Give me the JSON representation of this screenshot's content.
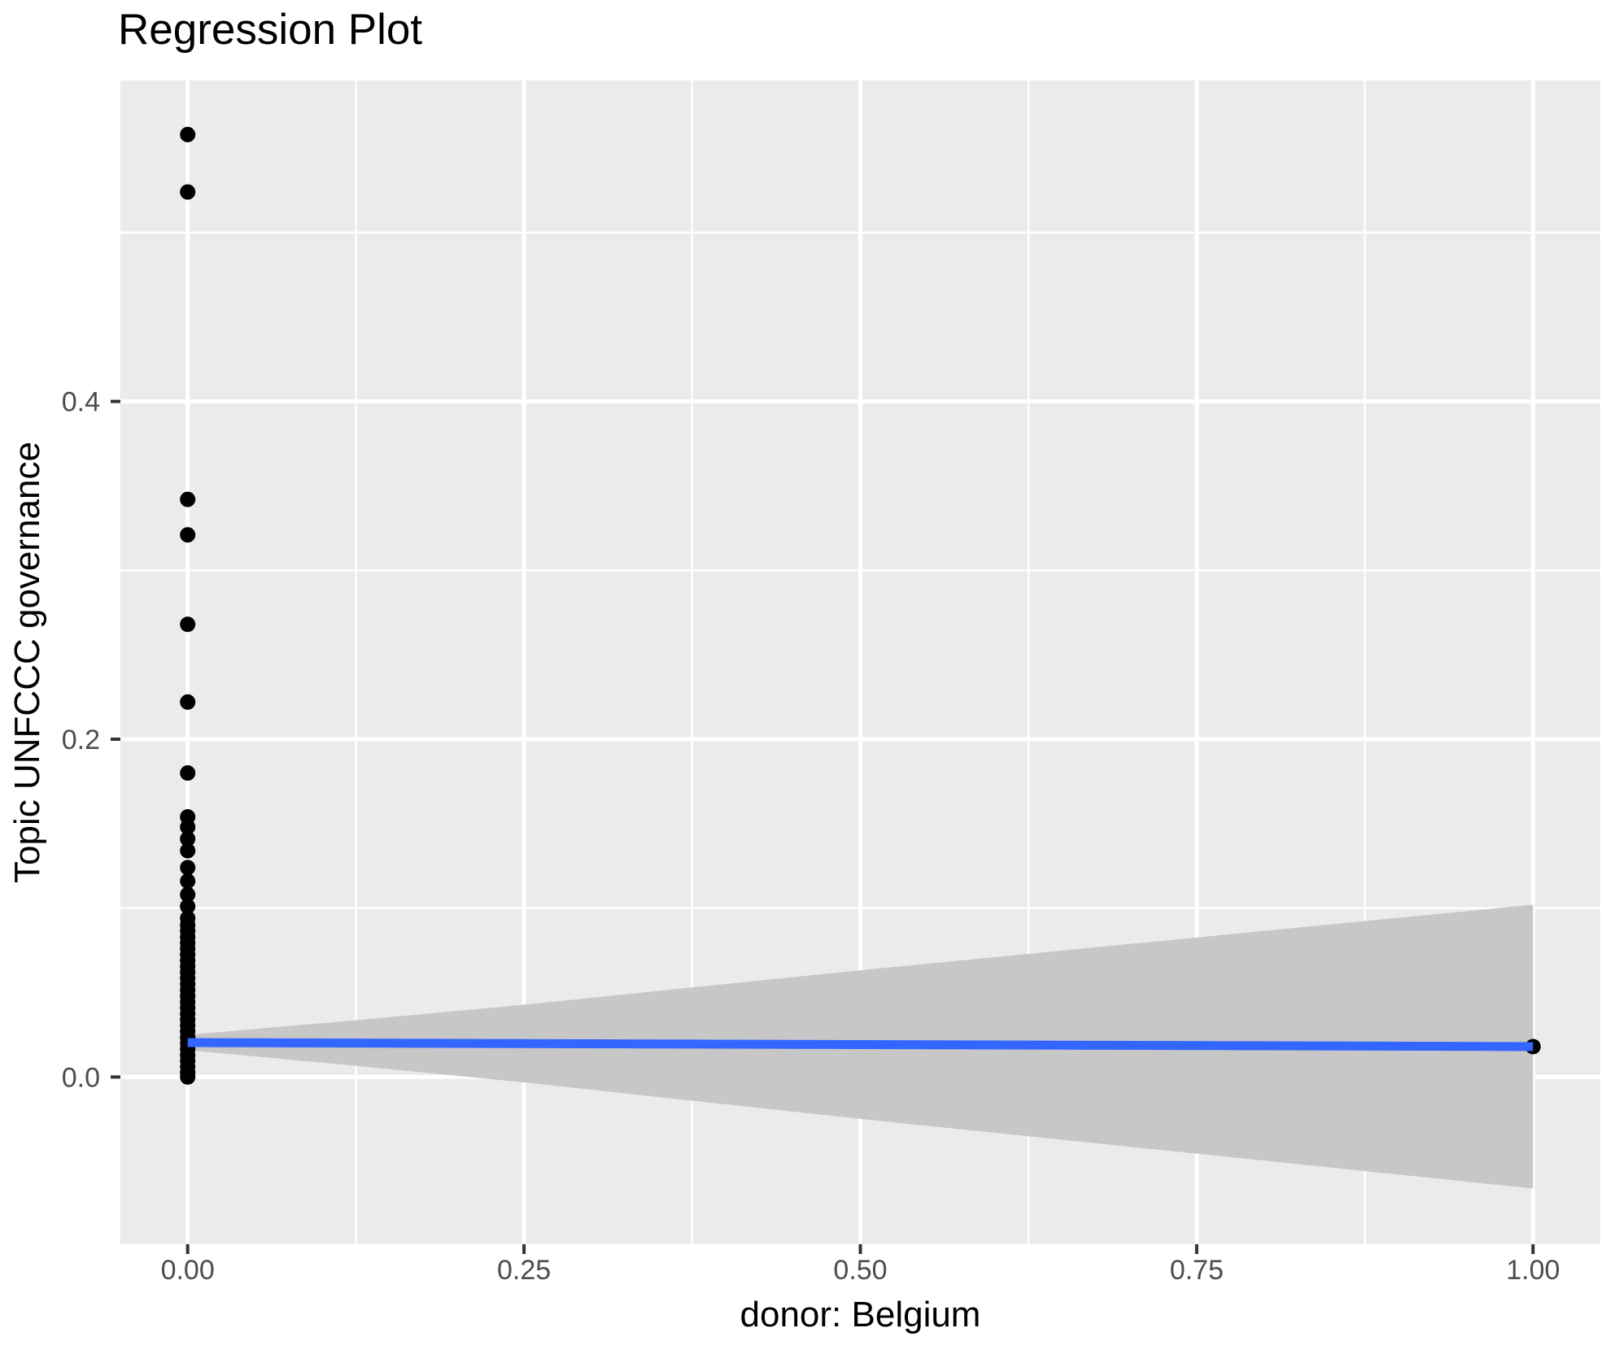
{
  "title": "Regression Plot",
  "chart_data": {
    "type": "scatter",
    "title": "Regression Plot",
    "xlabel": "donor: Belgium",
    "ylabel": "Topic UNFCCC governance",
    "xlim": [
      -0.05,
      1.05
    ],
    "ylim": [
      -0.099,
      0.59
    ],
    "x_ticks": [
      0.0,
      0.25,
      0.5,
      0.75,
      1.0
    ],
    "x_tick_labels": [
      "0.00",
      "0.25",
      "0.50",
      "0.75",
      "1.00"
    ],
    "x_minor": [
      0.125,
      0.375,
      0.625,
      0.875
    ],
    "y_ticks": [
      0.0,
      0.2,
      0.4
    ],
    "y_tick_labels": [
      "0.0",
      "0.2",
      "0.4"
    ],
    "y_minor": [
      0.1,
      0.3,
      0.5
    ],
    "grid": true,
    "legend": false,
    "scatter": [
      {
        "x": 0.0,
        "y_values": [
          0.558,
          0.524,
          0.342,
          0.321,
          0.268,
          0.222,
          0.18,
          0.154,
          0.148,
          0.141,
          0.134,
          0.124,
          0.116,
          0.108,
          0.101,
          0.094,
          0.09,
          0.0865,
          0.083,
          0.0795,
          0.076,
          0.0725,
          0.069,
          0.0655,
          0.062,
          0.0585,
          0.055,
          0.0515,
          0.048,
          0.0445,
          0.041,
          0.0375,
          0.034,
          0.0305,
          0.027,
          0.0235,
          0.02,
          0.0165,
          0.013,
          0.0095,
          0.006,
          0.0025,
          0.0
        ]
      },
      {
        "x": 1.0,
        "y_values": [
          0.018
        ]
      }
    ],
    "regression_line": {
      "x": [
        0.0,
        1.0
      ],
      "y": [
        0.0204,
        0.018
      ],
      "color": "#3366FF"
    },
    "confidence_band": {
      "x": [
        0.0,
        0.0625,
        0.125,
        0.25,
        0.375,
        0.5,
        0.625,
        0.75,
        0.875,
        1.0
      ],
      "upper": [
        0.0249,
        0.0293,
        0.0336,
        0.0428,
        0.053,
        0.0632,
        0.0729,
        0.0826,
        0.0923,
        0.102
      ],
      "lower": [
        0.0159,
        0.0113,
        0.0066,
        -0.0032,
        -0.014,
        -0.0248,
        -0.0351,
        -0.0454,
        -0.0557,
        -0.066
      ]
    },
    "colors": {
      "panel": "#EBEBEB",
      "grid": "#FFFFFF",
      "point": "#000000",
      "band": "#C7C7C7",
      "line": "#3366FF",
      "tick_text": "#4D4D4D",
      "tick_mark": "#333333",
      "axis_title": "#000000",
      "title": "#000000"
    },
    "style": {
      "point_radius": 9.5,
      "line_width": 11,
      "grid_major_width": 5,
      "grid_minor_width": 2.4,
      "tick_len": 12,
      "tick_width": 4,
      "tick_font": 34,
      "axis_title_font": 44,
      "title_font": 53
    }
  }
}
